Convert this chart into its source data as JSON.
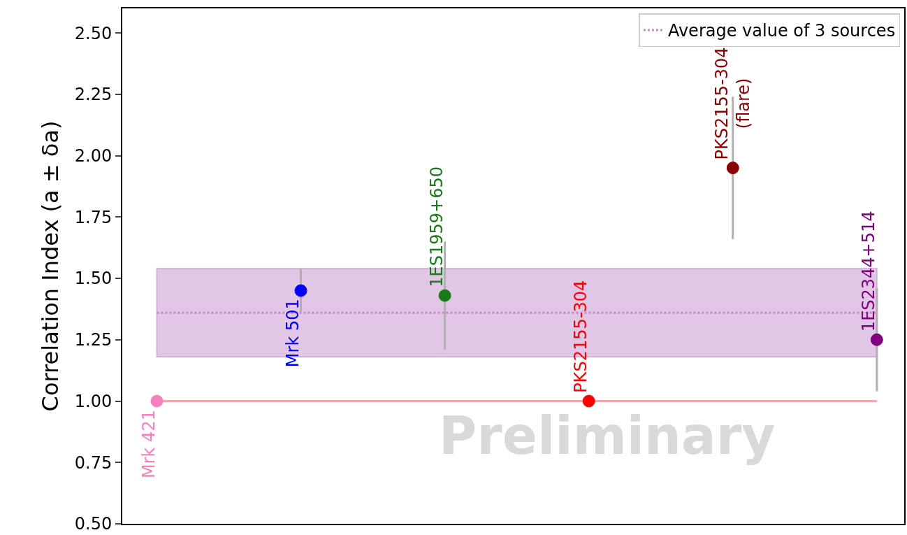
{
  "chart_data": {
    "type": "scatter",
    "ylabel": "Correlation Index (a ± δa)",
    "categories": [
      null,
      null,
      null,
      null,
      null,
      null
    ],
    "series": [
      {
        "name": "Mrk 421",
        "color": "#f77fbe",
        "values": [
          1.0,
          null,
          null,
          null,
          null,
          null
        ],
        "errors": [
          null,
          null,
          null,
          null,
          null,
          null
        ]
      },
      {
        "name": "Mrk 501",
        "color": "#0000ff",
        "values": [
          null,
          1.45,
          null,
          null,
          null,
          null
        ],
        "errors": [
          null,
          0.09,
          null,
          null,
          null,
          null
        ]
      },
      {
        "name": "1ES1959+650",
        "color": "#1a7a1a",
        "values": [
          null,
          null,
          1.43,
          null,
          null,
          null
        ],
        "errors": [
          null,
          null,
          0.22,
          null,
          null,
          null
        ]
      },
      {
        "name": "PKS2155-304",
        "color": "#ff0000",
        "values": [
          null,
          null,
          null,
          1.0,
          null,
          null
        ],
        "errors": [
          null,
          null,
          null,
          null,
          null,
          null
        ]
      },
      {
        "name": "PKS2155-304\n(flare)",
        "color": "#8b0000",
        "values": [
          null,
          null,
          null,
          null,
          1.95,
          null
        ],
        "errors": [
          null,
          null,
          null,
          null,
          0.29,
          null
        ]
      },
      {
        "name": "1ES2344+514",
        "color": "#800080",
        "values": [
          null,
          null,
          null,
          null,
          null,
          1.25
        ],
        "errors": [
          null,
          null,
          null,
          null,
          null,
          0.21
        ]
      }
    ],
    "ylim": [
      0.5,
      2.6
    ],
    "yticks": [
      {
        "value": 0.5,
        "label": "0.50"
      },
      {
        "value": 0.75,
        "label": "0.75"
      },
      {
        "value": 1.0,
        "label": "1.00"
      },
      {
        "value": 1.25,
        "label": "1.25"
      },
      {
        "value": 1.5,
        "label": "1.50"
      },
      {
        "value": 1.75,
        "label": "1.75"
      },
      {
        "value": 2.0,
        "label": "2.00"
      },
      {
        "value": 2.25,
        "label": "2.25"
      },
      {
        "value": 2.5,
        "label": "2.50"
      }
    ],
    "ref_lines": [
      {
        "axis": "y",
        "value": 1.0,
        "color": "#f4a3a8",
        "line_style": "solid"
      },
      {
        "axis": "y",
        "value": 1.36,
        "label": "Average value of 3 sources",
        "color": "#c38ac8",
        "line_style": "dotted"
      }
    ],
    "bands": [
      {
        "axis": "y",
        "from": 1.18,
        "to": 1.54,
        "color": "#d9b3dd"
      }
    ],
    "annotations": [
      "Preliminary"
    ],
    "tick_labels": "y",
    "grid": false,
    "legend": "top right",
    "marker": "circle"
  }
}
